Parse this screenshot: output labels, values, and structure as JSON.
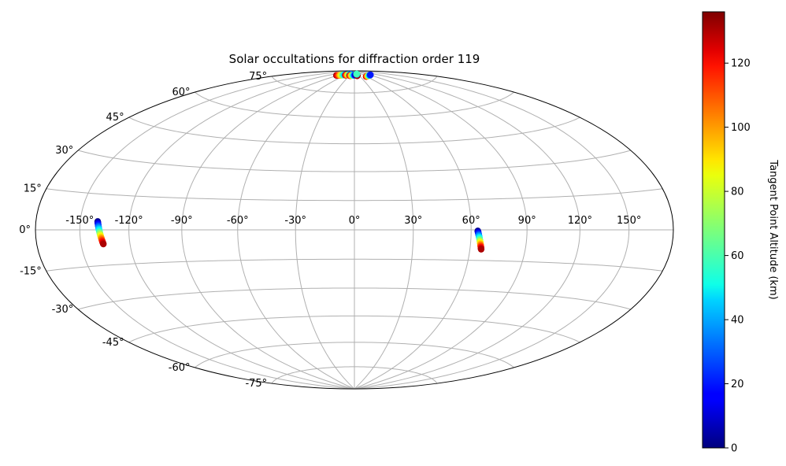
{
  "chart_data": {
    "type": "scatter",
    "projection": "hammer",
    "title": "Solar occultations for diffraction order 119",
    "grid": true,
    "colormap": "jet",
    "xlim": [
      -180,
      180
    ],
    "ylim": [
      -90,
      90
    ],
    "lon_tick_labels": [
      {
        "value": -150,
        "label": "-150°"
      },
      {
        "value": -120,
        "label": "-120°"
      },
      {
        "value": -90,
        "label": "-90°"
      },
      {
        "value": -60,
        "label": "-60°"
      },
      {
        "value": -30,
        "label": "-30°"
      },
      {
        "value": 0,
        "label": "0°"
      },
      {
        "value": 30,
        "label": "30°"
      },
      {
        "value": 60,
        "label": "60°"
      },
      {
        "value": 90,
        "label": "90°"
      },
      {
        "value": 120,
        "label": "120°"
      },
      {
        "value": 150,
        "label": "150°"
      }
    ],
    "lat_tick_labels": [
      {
        "value": 75,
        "label": "75°"
      },
      {
        "value": 60,
        "label": "60°"
      },
      {
        "value": 45,
        "label": "45°"
      },
      {
        "value": 30,
        "label": "30°"
      },
      {
        "value": 15,
        "label": "15°"
      },
      {
        "value": 0,
        "label": "0°"
      },
      {
        "value": -15,
        "label": "-15°"
      },
      {
        "value": -30,
        "label": "-30°"
      },
      {
        "value": -45,
        "label": "-45°"
      },
      {
        "value": -60,
        "label": "-60°"
      },
      {
        "value": -75,
        "label": "-75°"
      }
    ],
    "colorbar": {
      "label": "Tangent Point Altitude (km)",
      "range": [
        0,
        136
      ],
      "ticks": [
        {
          "value": 0,
          "label": "0"
        },
        {
          "value": 20,
          "label": "20"
        },
        {
          "value": 40,
          "label": "40"
        },
        {
          "value": 60,
          "label": "60"
        },
        {
          "value": 80,
          "label": "80"
        },
        {
          "value": 100,
          "label": "100"
        },
        {
          "value": 120,
          "label": "120"
        }
      ]
    },
    "tracks": [
      {
        "lon_start": -139,
        "lat_start": 3.5,
        "lon_end": -136,
        "lat_end": -6,
        "alt_start": 0,
        "alt_end": 130
      },
      {
        "lon_start": 63.5,
        "lat_start": -0.5,
        "lon_end": 66,
        "lat_end": -9.5,
        "alt_start": 0,
        "alt_end": 130
      },
      {
        "lon_start": -95,
        "lat_start": 85.5,
        "lon_end": -56,
        "lat_end": 87,
        "alt_start": 135,
        "alt_end": 20
      },
      {
        "lon_start": -57,
        "lat_start": 86.5,
        "lon_end": -28,
        "lat_end": 87.5,
        "alt_start": 130,
        "alt_end": 30
      },
      {
        "lon_start": -30,
        "lat_start": 86.5,
        "lon_end": 8,
        "lat_end": 87,
        "alt_start": 130,
        "alt_end": 10
      },
      {
        "lon_start": 58,
        "lat_start": 85.5,
        "lon_end": 95,
        "lat_end": 86,
        "alt_start": 130,
        "alt_end": 20
      },
      {
        "lon_start": 17,
        "lat_start": 86.5,
        "lon_end": 19,
        "lat_end": 87,
        "alt_start": 130,
        "alt_end": 130
      },
      {
        "lon_start": 20,
        "lat_start": 87.5,
        "lon_end": 21,
        "lat_end": 87.7,
        "alt_start": 10,
        "alt_end": 60
      }
    ]
  }
}
